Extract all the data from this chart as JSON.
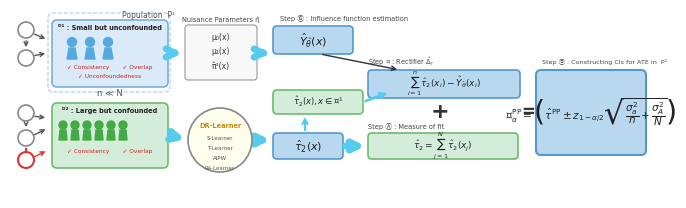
{
  "bg_color": "#ffffff",
  "fig_width": 6.4,
  "fig_height": 1.88,
  "population_label": "Population  P¹",
  "d1_box_label": "ᴰ¹ : Small but unconfounded",
  "d1_checks_row1": "✓ Consistency       ✓ Overlap",
  "d1_checks_row2": "✓ Unconfoundedness",
  "d1_bg": "#daeaf8",
  "d1_border": "#7ab0d4",
  "d2_box_label": "ᴰ² : Large but confounded",
  "d2_checks_row1": "✓ Consistency       ✓ Overlap",
  "d2_bg": "#d4edda",
  "d2_border": "#6dbb6d",
  "n_ll_N": "n ≪ N",
  "nuisance_label": "Nuisance Parameters η̂",
  "nuisance_params": [
    "μ₀(x)",
    "μ₁(x)",
    "π̂¹(x)"
  ],
  "nuisance_bg": "#f8f8f8",
  "nuisance_border": "#999999",
  "stepB_label": "Step Ⓑ : Influence function estimation",
  "Ytilde_label": "$\\hat{Y}_{\\hat{\\theta}}(x)$",
  "Ytilde_bg": "#b8d8f0",
  "Ytilde_border": "#5599cc",
  "stepC_label": "Step Ⓒ : Rectifier $\\hat{\\Delta}_r$",
  "rectifier_expr": "$\\sum_{i=1}^{n} \\hat{\\tau}_2(x_i) - \\hat{Y}_{\\hat{\\theta}}(x_i)$",
  "rectifier_bg": "#b8d8f0",
  "rectifier_border": "#5599cc",
  "tau2xD1_label": "$\\hat{\\tau}_2(x), x \\in \\mathcal{D}^1$",
  "tau2xD1_bg": "#d4edda",
  "tau2xD1_border": "#6dbb6d",
  "plus_sign": "+",
  "equals_sign": "=",
  "stepA_label": "Step Ⓐ : Measure of fit",
  "tau2_hat_expr": "$\\hat{\\tau}_2 = \\sum_{j=1}^{N} \\hat{\\tau}_2(x_j)$",
  "tau2_hat_bg": "#d4edda",
  "tau2_hat_border": "#6dbb6d",
  "tau2x_label": "$\\hat{\\tau}_2(x)$",
  "tau2x_bg": "#b8d8f0",
  "tau2x_border": "#5599cc",
  "drlearner_label": "DR-Learner",
  "drlearner_sub": [
    "S-Learner",
    "T-Learner",
    "AIPW",
    "RA-Learner"
  ],
  "drlearner_bg": "#ffffee",
  "drlearner_border": "#888888",
  "stepD_label": "Step Ⓓ : Constructing CIs for ATE in  P¹",
  "CI_expr": "$\\mathcal{C}_\\alpha^{\\mathrm{PP}} = \\left(\\hat{\\tau}^{\\mathrm{PP}} \\pm z_{1-\\alpha/2}\\sqrt{\\dfrac{\\sigma_a^2}{n} + \\dfrac{\\sigma_A^2}{N}}\\right)$",
  "CI_bg": "#b8d8f0",
  "CI_border": "#5599cc",
  "arrow_color": "#55ccee",
  "dark_arrow": "#555555",
  "red_arrow": "#dd3333"
}
